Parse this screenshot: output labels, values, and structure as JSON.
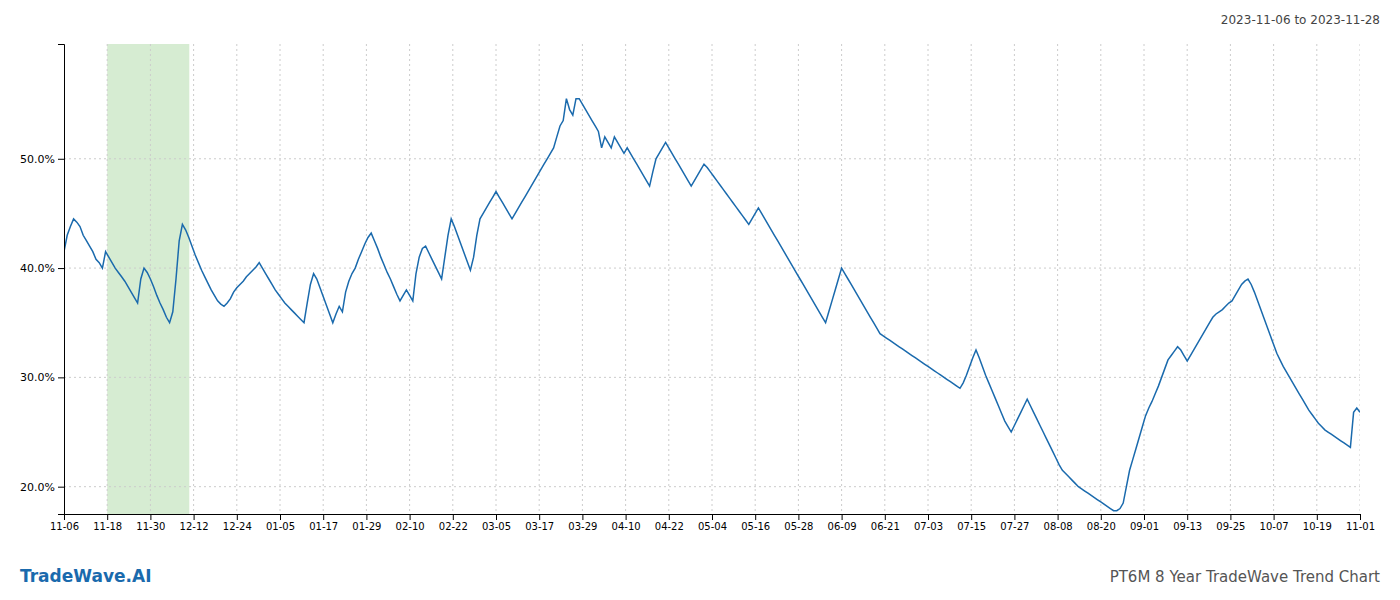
{
  "chart_data": {
    "type": "line",
    "title": "PT6M 8 Year TradeWave Trend Chart",
    "subtitle": "2023-11-06 to 2023-11-28",
    "annotations": [
      "TradeWave.AI"
    ],
    "color": "#1a6aad",
    "grid": true,
    "xlim": [
      0,
      405
    ],
    "xticks": [
      {
        "value": 0,
        "label": "11-06"
      },
      {
        "value": 13.5,
        "label": "11-18"
      },
      {
        "value": 27,
        "label": "11-30"
      },
      {
        "value": 40.5,
        "label": "12-12"
      },
      {
        "value": 54,
        "label": "12-24"
      },
      {
        "value": 67.5,
        "label": "01-05"
      },
      {
        "value": 81,
        "label": "01-17"
      },
      {
        "value": 94.5,
        "label": "01-29"
      },
      {
        "value": 108,
        "label": "02-10"
      },
      {
        "value": 121.5,
        "label": "02-22"
      },
      {
        "value": 135,
        "label": "03-05"
      },
      {
        "value": 148.5,
        "label": "03-17"
      },
      {
        "value": 162,
        "label": "03-29"
      },
      {
        "value": 175.5,
        "label": "04-10"
      },
      {
        "value": 189,
        "label": "04-22"
      },
      {
        "value": 202.5,
        "label": "05-04"
      },
      {
        "value": 216,
        "label": "05-16"
      },
      {
        "value": 229.5,
        "label": "05-28"
      },
      {
        "value": 243,
        "label": "06-09"
      },
      {
        "value": 256.5,
        "label": "06-21"
      },
      {
        "value": 270,
        "label": "07-03"
      },
      {
        "value": 283.5,
        "label": "07-15"
      },
      {
        "value": 297,
        "label": "07-27"
      },
      {
        "value": 310.5,
        "label": "08-08"
      },
      {
        "value": 324,
        "label": "08-20"
      },
      {
        "value": 337.5,
        "label": "09-01"
      },
      {
        "value": 351,
        "label": "09-13"
      },
      {
        "value": 364.5,
        "label": "09-25"
      },
      {
        "value": 378,
        "label": "10-07"
      },
      {
        "value": 391.5,
        "label": "10-19"
      },
      {
        "value": 405,
        "label": "11-01"
      }
    ],
    "ylim": [
      0.175,
      0.605
    ],
    "yticks": [
      {
        "value": 0.2,
        "label": "20.0%"
      },
      {
        "value": 0.3,
        "label": "30.0%"
      },
      {
        "value": 0.4,
        "label": "40.0%"
      },
      {
        "value": 0.5,
        "label": "50.0%"
      }
    ],
    "highlight": {
      "start": 13.5,
      "end": 39.15,
      "color": "#d6ecd2"
    },
    "values": [
      0.415,
      0.43,
      0.438,
      0.445,
      0.442,
      0.438,
      0.43,
      0.425,
      0.42,
      0.415,
      0.408,
      0.405,
      0.4,
      0.415,
      0.41,
      0.405,
      0.4,
      0.396,
      0.392,
      0.388,
      0.383,
      0.378,
      0.373,
      0.368,
      0.39,
      0.4,
      0.396,
      0.39,
      0.383,
      0.375,
      0.368,
      0.362,
      0.355,
      0.35,
      0.36,
      0.39,
      0.425,
      0.44,
      0.435,
      0.428,
      0.42,
      0.412,
      0.405,
      0.398,
      0.392,
      0.386,
      0.38,
      0.375,
      0.37,
      0.367,
      0.365,
      0.368,
      0.372,
      0.378,
      0.382,
      0.385,
      0.388,
      0.392,
      0.395,
      0.398,
      0.401,
      0.405,
      0.4,
      0.395,
      0.39,
      0.385,
      0.38,
      0.376,
      0.372,
      0.368,
      0.365,
      0.362,
      0.359,
      0.356,
      0.353,
      0.35,
      0.368,
      0.385,
      0.395,
      0.39,
      0.382,
      0.374,
      0.366,
      0.358,
      0.35,
      0.358,
      0.365,
      0.36,
      0.378,
      0.388,
      0.395,
      0.4,
      0.408,
      0.415,
      0.422,
      0.428,
      0.432,
      0.425,
      0.418,
      0.41,
      0.403,
      0.396,
      0.39,
      0.383,
      0.376,
      0.37,
      0.375,
      0.38,
      0.375,
      0.37,
      0.395,
      0.41,
      0.418,
      0.42,
      0.414,
      0.408,
      0.402,
      0.396,
      0.39,
      0.41,
      0.43,
      0.445,
      0.438,
      0.43,
      0.422,
      0.414,
      0.406,
      0.398,
      0.41,
      0.43,
      0.445,
      0.45,
      0.455,
      0.46,
      0.465,
      0.47,
      0.465,
      0.46,
      0.455,
      0.45,
      0.445,
      0.45,
      0.455,
      0.46,
      0.465,
      0.47,
      0.475,
      0.48,
      0.485,
      0.49,
      0.495,
      0.5,
      0.505,
      0.51,
      0.52,
      0.53,
      0.535,
      0.555,
      0.545,
      0.54,
      0.555,
      0.555,
      0.55,
      0.545,
      0.54,
      0.535,
      0.53,
      0.525,
      0.51,
      0.52,
      0.515,
      0.51,
      0.52,
      0.515,
      0.51,
      0.505,
      0.51,
      0.505,
      0.5,
      0.495,
      0.49,
      0.485,
      0.48,
      0.475,
      0.488,
      0.5,
      0.505,
      0.51,
      0.515,
      0.51,
      0.505,
      0.5,
      0.495,
      0.49,
      0.485,
      0.48,
      0.475,
      0.48,
      0.485,
      0.49,
      0.495,
      0.492,
      0.488,
      0.484,
      0.48,
      0.476,
      0.472,
      0.468,
      0.464,
      0.46,
      0.456,
      0.452,
      0.448,
      0.444,
      0.44,
      0.445,
      0.45,
      0.455,
      0.45,
      0.445,
      0.44,
      0.435,
      0.43,
      0.425,
      0.42,
      0.415,
      0.41,
      0.405,
      0.4,
      0.395,
      0.39,
      0.385,
      0.38,
      0.375,
      0.37,
      0.365,
      0.36,
      0.355,
      0.35,
      0.36,
      0.37,
      0.38,
      0.39,
      0.4,
      0.395,
      0.39,
      0.385,
      0.38,
      0.375,
      0.37,
      0.365,
      0.36,
      0.355,
      0.35,
      0.345,
      0.34,
      0.338,
      0.336,
      0.334,
      0.332,
      0.33,
      0.328,
      0.326,
      0.324,
      0.322,
      0.32,
      0.318,
      0.316,
      0.314,
      0.312,
      0.31,
      0.308,
      0.306,
      0.304,
      0.302,
      0.3,
      0.298,
      0.296,
      0.294,
      0.292,
      0.29,
      0.295,
      0.302,
      0.31,
      0.318,
      0.325,
      0.318,
      0.31,
      0.302,
      0.295,
      0.288,
      0.281,
      0.274,
      0.267,
      0.26,
      0.255,
      0.25,
      0.256,
      0.262,
      0.268,
      0.274,
      0.28,
      0.274,
      0.268,
      0.262,
      0.256,
      0.25,
      0.244,
      0.238,
      0.232,
      0.226,
      0.22,
      0.215,
      0.212,
      0.209,
      0.206,
      0.203,
      0.2,
      0.198,
      0.196,
      0.194,
      0.192,
      0.19,
      0.188,
      0.186,
      0.184,
      0.182,
      0.18,
      0.178,
      0.178,
      0.18,
      0.185,
      0.2,
      0.215,
      0.225,
      0.235,
      0.245,
      0.255,
      0.265,
      0.272,
      0.278,
      0.285,
      0.292,
      0.3,
      0.308,
      0.316,
      0.32,
      0.324,
      0.328,
      0.325,
      0.32,
      0.315,
      0.32,
      0.325,
      0.33,
      0.335,
      0.34,
      0.345,
      0.35,
      0.355,
      0.358,
      0.36,
      0.362,
      0.365,
      0.368,
      0.37,
      0.375,
      0.38,
      0.385,
      0.388,
      0.39,
      0.385,
      0.378,
      0.37,
      0.362,
      0.354,
      0.346,
      0.338,
      0.33,
      0.322,
      0.316,
      0.31,
      0.305,
      0.3,
      0.295,
      0.29,
      0.285,
      0.28,
      0.275,
      0.27,
      0.266,
      0.262,
      0.258,
      0.255,
      0.252,
      0.25,
      0.248,
      0.246,
      0.244,
      0.242,
      0.24,
      0.238,
      0.236,
      0.268,
      0.272,
      0.268
    ]
  }
}
